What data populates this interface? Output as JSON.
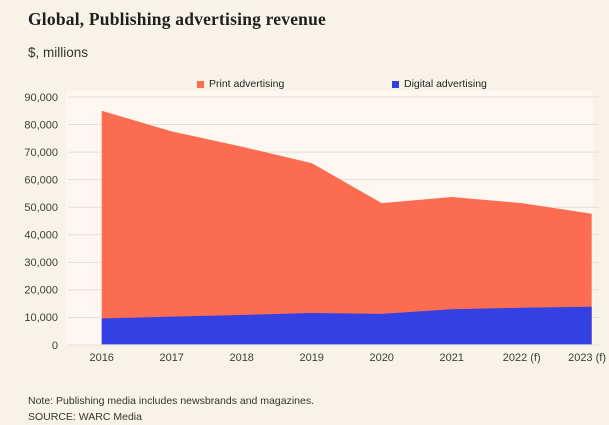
{
  "page": {
    "title": "Global, Publishing advertising revenue",
    "subtitle": "$, millions",
    "note": "Note: Publishing media includes newsbrands and magazines.",
    "source": "SOURCE: WARC Media"
  },
  "colors": {
    "background": "#F8F3E9",
    "plot_background": "#FCF8F1",
    "gridline": "#E5DFD3",
    "zero_line": "#EFECE3",
    "title_text": "#201F1D",
    "body_text": "#35332F",
    "axis_text": "#3E3D39",
    "print": "#FB6C51",
    "digital": "#3440E1"
  },
  "chart_data": {
    "type": "area",
    "stacked": true,
    "title": "Global, Publishing advertising revenue",
    "unit_label": "$, millions",
    "categories": [
      "2016",
      "2017",
      "2018",
      "2019",
      "2020",
      "2021",
      "2022 (f)",
      "2023 (f)"
    ],
    "series": [
      {
        "name": "Print advertising",
        "color": "#FB6C51",
        "stack_position": "top",
        "values": [
          75400,
          67200,
          61100,
          54400,
          40200,
          40700,
          38000,
          33700
        ]
      },
      {
        "name": "Digital advertising",
        "color": "#3440E1",
        "stack_position": "bottom",
        "values": [
          9600,
          10300,
          10900,
          11600,
          11300,
          13000,
          13500,
          13900
        ]
      }
    ],
    "stacked_totals": [
      85000,
      77500,
      72000,
      66000,
      51500,
      53700,
      51500,
      47600
    ],
    "xlabel": "",
    "ylabel": "$, millions",
    "ylim": [
      0,
      90000
    ],
    "ytick_interval": 10000,
    "yticks": [
      "90,000",
      "80,000",
      "70,000",
      "60,000",
      "50,000",
      "40,000",
      "30,000",
      "20,000",
      "10,000",
      "0"
    ],
    "grid": true,
    "legend_position": "top"
  }
}
